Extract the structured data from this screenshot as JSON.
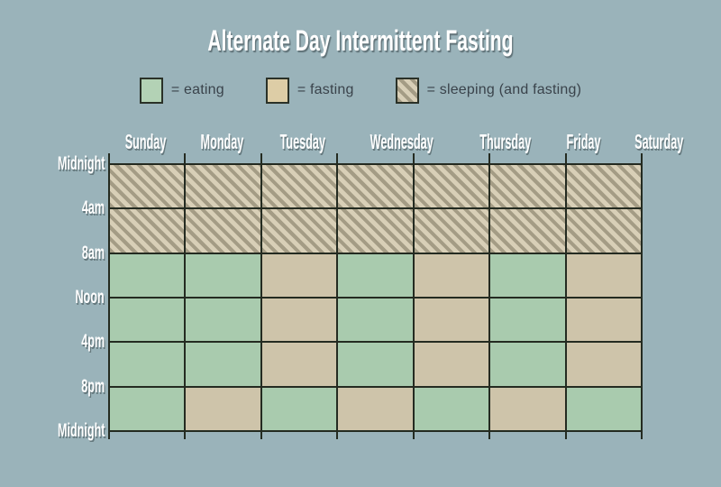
{
  "title": "Alternate Day Intermittent Fasting",
  "legend": {
    "items": [
      {
        "key": "eat",
        "label": "= eating"
      },
      {
        "key": "fast",
        "label": "= fasting"
      },
      {
        "key": "sleep",
        "label": "= sleeping (and fasting)"
      }
    ]
  },
  "colors": {
    "background": "#9ab3ba",
    "eating_cell": "#a9cbae",
    "fasting_cell": "#cec4aa",
    "sleep_stripe_dark": "#a49c85",
    "sleep_stripe_light": "#d8cfb7",
    "grid_line": "#242b21",
    "label_text": "#ffffff",
    "legend_text": "#3a434b",
    "legend_eating_swatch": "#b3d2b5",
    "legend_fasting_swatch": "#ddcda6"
  },
  "chart_data": {
    "type": "heatmap",
    "title": "Alternate Day Intermittent Fasting",
    "columns": [
      "Sunday",
      "Monday",
      "Tuesday",
      "Wednesday",
      "Thursday",
      "Friday",
      "Saturday"
    ],
    "time_axis_labels": [
      "Midnight",
      "4am",
      "8am",
      "Noon",
      "4pm",
      "8pm",
      "Midnight"
    ],
    "row_ranges": [
      "Midnight-4am",
      "4am-8am",
      "8am-Noon",
      "Noon-4pm",
      "4pm-8pm",
      "8pm-Midnight"
    ],
    "legend": {
      "eat": "eating",
      "fast": "fasting",
      "sleep": "sleeping (and fasting)"
    },
    "cells": [
      [
        "sleep",
        "sleep",
        "sleep",
        "sleep",
        "sleep",
        "sleep",
        "sleep"
      ],
      [
        "sleep",
        "sleep",
        "sleep",
        "sleep",
        "sleep",
        "sleep",
        "sleep"
      ],
      [
        "eat",
        "eat",
        "fast",
        "eat",
        "fast",
        "eat",
        "fast"
      ],
      [
        "eat",
        "eat",
        "fast",
        "eat",
        "fast",
        "eat",
        "fast"
      ],
      [
        "eat",
        "eat",
        "fast",
        "eat",
        "fast",
        "eat",
        "fast"
      ],
      [
        "eat",
        "fast",
        "eat",
        "fast",
        "eat",
        "fast",
        "eat"
      ]
    ],
    "layout": {
      "grid_rows": 6,
      "grid_columns": 7,
      "legend_position": "top",
      "time_axis_side": "left",
      "gridlines": true
    }
  }
}
